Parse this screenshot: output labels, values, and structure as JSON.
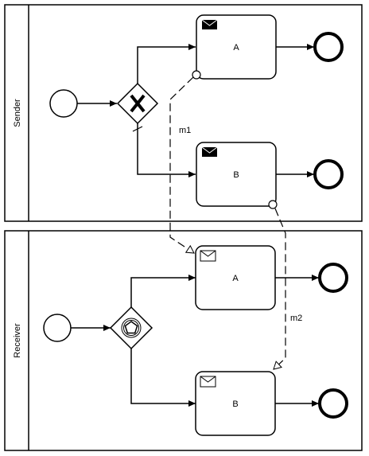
{
  "pools": {
    "sender": {
      "label": "Sender",
      "tasks": {
        "a": "A",
        "b": "B"
      }
    },
    "receiver": {
      "label": "Receiver",
      "tasks": {
        "a": "A",
        "b": "B"
      }
    }
  },
  "message_flows": {
    "m1": "m1",
    "m2": "m2"
  },
  "icons": {
    "send_task": "envelope-filled-icon",
    "receive_task": "envelope-outline-icon",
    "exclusive_gateway": "x-icon",
    "event_based_gateway": "pentagon-icon"
  }
}
